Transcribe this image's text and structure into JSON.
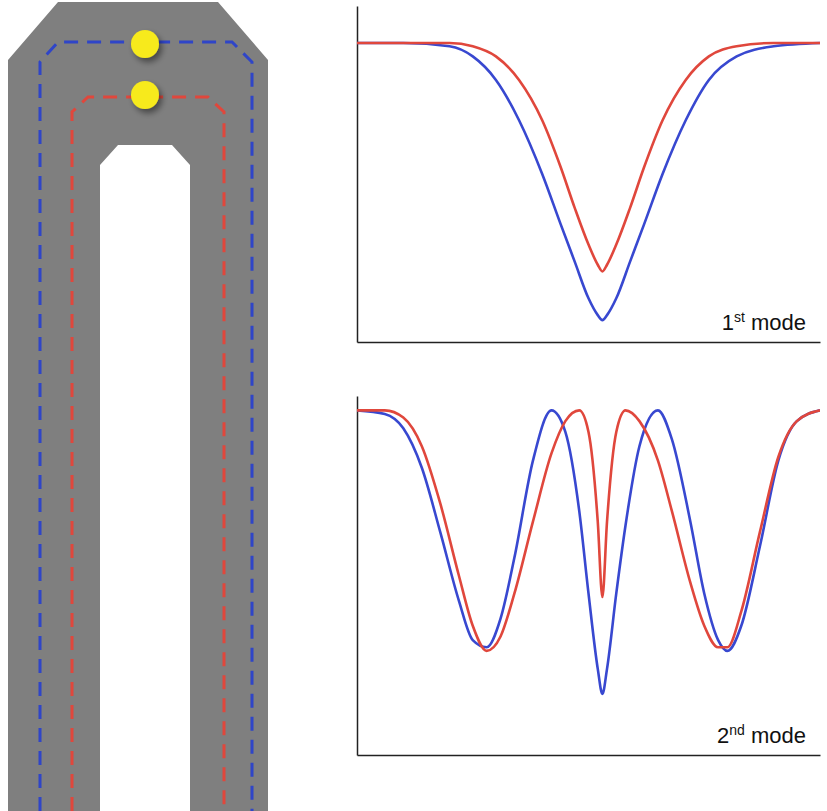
{
  "chart_data": [
    {
      "type": "line",
      "annotation": "1st mode",
      "grid": false,
      "tick_labels": false,
      "xlim": [
        0,
        100
      ],
      "ylim": [
        0,
        1
      ],
      "xticks": [],
      "yticks": [],
      "x": [
        0,
        10,
        20,
        25,
        30,
        35,
        40,
        44,
        47,
        50,
        52,
        53,
        54,
        56,
        59,
        62,
        66,
        71,
        76,
        82,
        90,
        100
      ],
      "series": [
        {
          "color": "#3848d0",
          "values": [
            0.89,
            0.89,
            0.88,
            0.85,
            0.78,
            0.66,
            0.5,
            0.35,
            0.24,
            0.13,
            0.08,
            0.065,
            0.08,
            0.13,
            0.24,
            0.35,
            0.5,
            0.66,
            0.78,
            0.85,
            0.88,
            0.89
          ]
        },
        {
          "color": "#e0473c",
          "values": [
            0.89,
            0.89,
            0.89,
            0.88,
            0.85,
            0.78,
            0.66,
            0.52,
            0.4,
            0.29,
            0.23,
            0.21,
            0.23,
            0.29,
            0.4,
            0.52,
            0.66,
            0.78,
            0.85,
            0.88,
            0.89,
            0.89
          ]
        }
      ]
    },
    {
      "type": "line",
      "annotation": "2nd mode",
      "grid": false,
      "tick_labels": false,
      "xlim": [
        0,
        100
      ],
      "ylim": [
        0,
        1
      ],
      "xticks": [],
      "yticks": [],
      "x": [
        0,
        6,
        10,
        14,
        18,
        22,
        25,
        28,
        31,
        34,
        38,
        42,
        45,
        48,
        50,
        52,
        53,
        54,
        56,
        58,
        61,
        65,
        68,
        72,
        75,
        78,
        80,
        83,
        87,
        91,
        95,
        100
      ],
      "series": [
        {
          "color": "#3848d0",
          "values": [
            0.96,
            0.95,
            0.91,
            0.8,
            0.62,
            0.43,
            0.32,
            0.3,
            0.38,
            0.55,
            0.82,
            0.96,
            0.9,
            0.68,
            0.45,
            0.24,
            0.17,
            0.24,
            0.45,
            0.64,
            0.86,
            0.96,
            0.88,
            0.65,
            0.45,
            0.32,
            0.29,
            0.36,
            0.58,
            0.82,
            0.93,
            0.96
          ]
        },
        {
          "color": "#e0473c",
          "values": [
            0.96,
            0.96,
            0.94,
            0.86,
            0.7,
            0.5,
            0.36,
            0.29,
            0.33,
            0.45,
            0.65,
            0.84,
            0.93,
            0.96,
            0.9,
            0.65,
            0.44,
            0.65,
            0.9,
            0.96,
            0.93,
            0.82,
            0.68,
            0.48,
            0.36,
            0.3,
            0.3,
            0.4,
            0.62,
            0.83,
            0.93,
            0.96
          ]
        }
      ]
    }
  ]
}
